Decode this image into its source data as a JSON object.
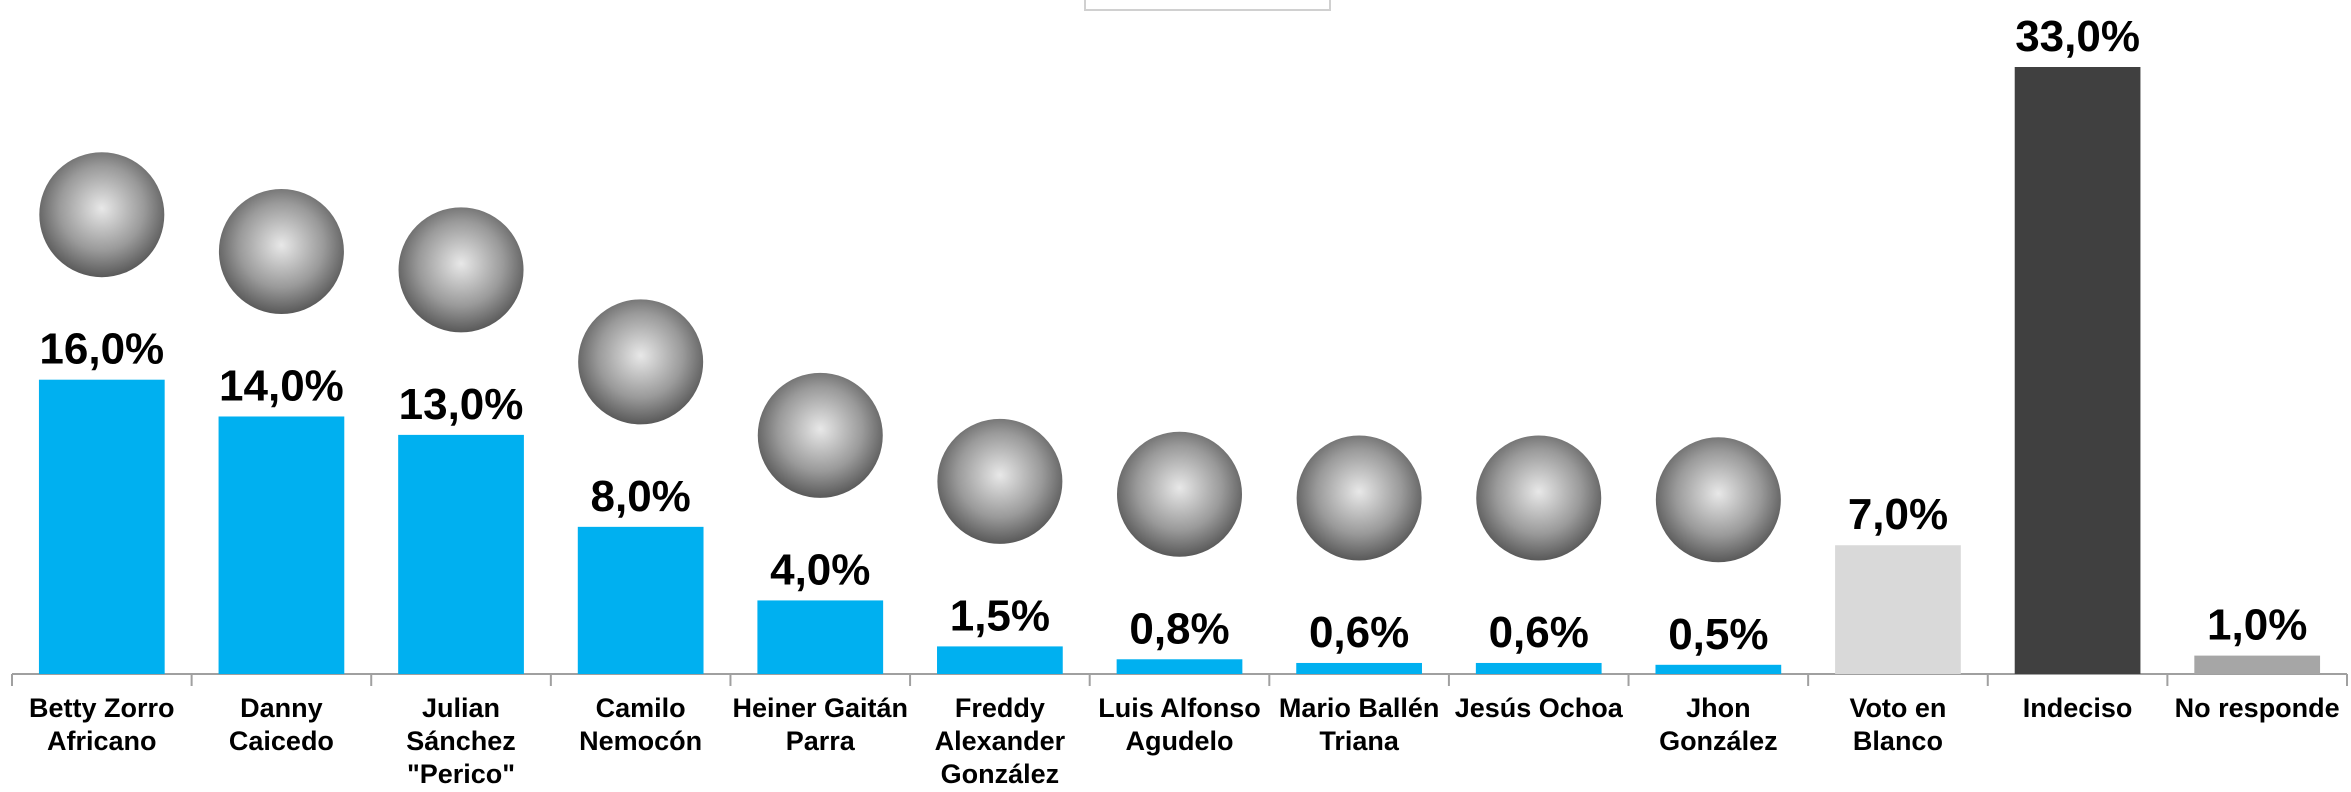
{
  "chart_data": {
    "type": "bar",
    "categories": [
      "Betty Zorro Africano",
      "Danny Caicedo",
      "Julian Sánchez \"Perico\"",
      "Camilo Nemocón",
      "Heiner Gaitán Parra",
      "Freddy Alexander González",
      "Luis Alfonso Agudelo",
      "Mario Ballén Triana",
      "Jesús Ochoa",
      "Jhon González",
      "Voto en Blanco",
      "Indeciso",
      "No responde"
    ],
    "values": [
      16,
      14,
      13,
      8,
      4,
      1.5,
      0.8,
      0.6,
      0.6,
      0.5,
      7,
      33,
      1
    ],
    "value_labels": [
      "16,0%",
      "14,0%",
      "13,0%",
      "8,0%",
      "4,0%",
      "1,5%",
      "0,8%",
      "0,6%",
      "0,6%",
      "0,5%",
      "7,0%",
      "33,0%",
      "1,0%"
    ],
    "colors": [
      "#00b0f0",
      "#00b0f0",
      "#00b0f0",
      "#00b0f0",
      "#00b0f0",
      "#00b0f0",
      "#00b0f0",
      "#00b0f0",
      "#00b0f0",
      "#00b0f0",
      "#d9d9d9",
      "#404040",
      "#a6a6a6"
    ]
  }
}
